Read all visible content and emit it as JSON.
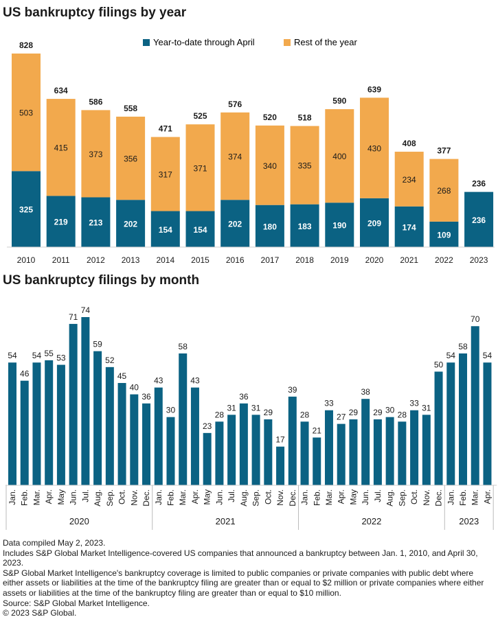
{
  "yearly": {
    "title": "US bankruptcy filings by year",
    "legend": [
      {
        "label": "Year-to-date through April",
        "color": "#0b6283"
      },
      {
        "label": "Rest of the year",
        "color": "#f2a94d"
      }
    ]
  },
  "monthly": {
    "title": "US bankruptcy filings by month"
  },
  "footnotes": [
    "Data compiled May 2, 2023.",
    "Includes S&P Global Market Intelligence-covered US companies that announced a bankruptcy between Jan. 1, 2010, and April 30, 2023.",
    "S&P Global Market Intelligence's bankruptcy coverage is limited to public companies or private companies with public debt where either assets or liabilities at the time of the bankruptcy filing are greater than or equal to $2 million or private companies where either assets or liabilities at the time of the bankruptcy filing are greater than or equal to $10 million.",
    "Source: S&P Global Market Intelligence.",
    "© 2023 S&P Global."
  ],
  "chart_data": [
    {
      "type": "bar",
      "stacked": true,
      "title": "US bankruptcy filings by year",
      "categories": [
        "2010",
        "2011",
        "2012",
        "2013",
        "2014",
        "2015",
        "2016",
        "2017",
        "2018",
        "2019",
        "2020",
        "2021",
        "2022",
        "2023"
      ],
      "series": [
        {
          "name": "Year-to-date through April",
          "color": "#0b6283",
          "values": [
            325,
            219,
            213,
            202,
            154,
            154,
            202,
            180,
            183,
            190,
            209,
            174,
            109,
            236
          ]
        },
        {
          "name": "Rest of the year",
          "color": "#f2a94d",
          "values": [
            503,
            415,
            373,
            356,
            317,
            371,
            374,
            340,
            335,
            400,
            430,
            234,
            268,
            null
          ]
        }
      ],
      "totals": [
        828,
        634,
        586,
        558,
        471,
        525,
        576,
        520,
        518,
        590,
        639,
        408,
        377,
        236
      ],
      "legend_position": "top",
      "ylim": [
        0,
        828
      ],
      "grid": false
    },
    {
      "type": "bar",
      "title": "US bankruptcy filings by month",
      "color": "#0b6283",
      "groups": [
        {
          "label": "2020",
          "months": [
            "Jan.",
            "Feb.",
            "Mar.",
            "Apr.",
            "May",
            "Jun.",
            "Jul.",
            "Aug.",
            "Sep.",
            "Oct.",
            "Nov.",
            "Dec."
          ],
          "values": [
            54,
            46,
            54,
            55,
            53,
            71,
            74,
            59,
            52,
            45,
            40,
            36
          ]
        },
        {
          "label": "2021",
          "months": [
            "Jan.",
            "Feb.",
            "Mar.",
            "Apr.",
            "May",
            "Jun.",
            "Jul.",
            "Aug.",
            "Sep.",
            "Oct.",
            "Nov.",
            "Dec."
          ],
          "values": [
            43,
            30,
            58,
            43,
            23,
            28,
            31,
            36,
            31,
            29,
            17,
            39
          ]
        },
        {
          "label": "2022",
          "months": [
            "Jan.",
            "Feb.",
            "Mar.",
            "Apr.",
            "May",
            "Jun.",
            "Jul.",
            "Aug.",
            "Sep.",
            "Oct.",
            "Nov.",
            "Dec."
          ],
          "values": [
            28,
            21,
            33,
            27,
            29,
            38,
            29,
            30,
            28,
            33,
            31,
            50
          ]
        },
        {
          "label": "2023",
          "months": [
            "Jan.",
            "Feb.",
            "Mar.",
            "Apr."
          ],
          "values": [
            54,
            58,
            70,
            54
          ]
        }
      ],
      "ylim": [
        0,
        74
      ],
      "grid": false
    }
  ]
}
